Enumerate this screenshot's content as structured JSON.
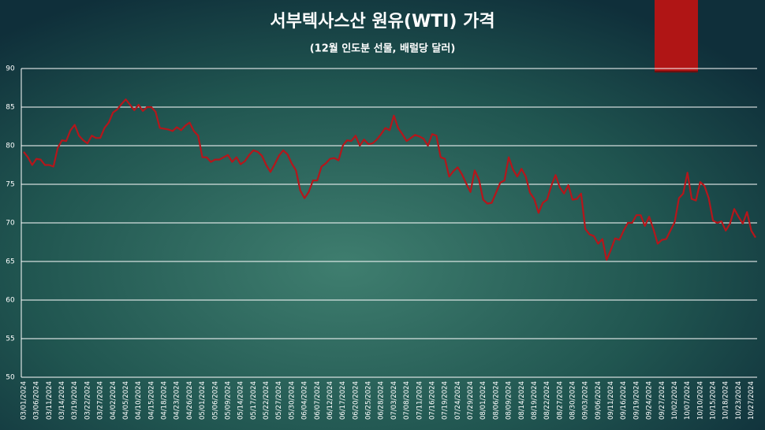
{
  "chart_data": {
    "type": "line",
    "title": "서부텍사스산 원유(WTI) 가격",
    "subtitle": "(12월 인도분 선물, 배럴당 달러)",
    "categories": [
      "03/01/2024",
      null,
      null,
      "03/06/2024",
      null,
      null,
      "03/11/2024",
      null,
      null,
      "03/14/2024",
      null,
      null,
      "03/19/2024",
      null,
      null,
      "03/22/2024",
      null,
      null,
      "03/27/2024",
      null,
      null,
      "04/02/2024",
      null,
      null,
      "04/05/2024",
      null,
      null,
      "04/10/2024",
      null,
      null,
      "04/15/2024",
      null,
      null,
      "04/18/2024",
      null,
      null,
      "04/23/2024",
      null,
      null,
      "04/26/2024",
      null,
      null,
      "05/01/2024",
      null,
      null,
      "05/06/2024",
      null,
      null,
      "05/09/2024",
      null,
      null,
      "05/14/2024",
      null,
      null,
      "05/17/2024",
      null,
      null,
      "05/22/2024",
      null,
      null,
      "05/27/2024",
      null,
      null,
      "05/30/2024",
      null,
      null,
      "06/04/2024",
      null,
      null,
      "06/07/2024",
      null,
      null,
      "06/12/2024",
      null,
      null,
      "06/17/2024",
      null,
      null,
      "06/20/2024",
      null,
      null,
      "06/25/2024",
      null,
      null,
      "06/28/2024",
      null,
      null,
      "07/03/2024",
      null,
      null,
      "07/08/2024",
      null,
      null,
      "07/11/2024",
      null,
      null,
      "07/16/2024",
      null,
      null,
      "07/19/2024",
      null,
      null,
      "07/24/2024",
      null,
      null,
      "07/29/2024",
      null,
      null,
      "08/01/2024",
      null,
      null,
      "08/06/2024",
      null,
      null,
      "08/09/2024",
      null,
      null,
      "08/14/2024",
      null,
      null,
      "08/19/2024",
      null,
      null,
      "08/22/2024",
      null,
      null,
      "08/27/2024",
      null,
      null,
      "08/30/2024",
      null,
      null,
      "09/03/2024",
      null,
      null,
      "09/06/2024",
      null,
      null,
      "09/11/2024",
      null,
      null,
      "09/16/2024",
      null,
      null,
      "09/19/2024",
      null,
      null,
      "09/24/2024",
      null,
      null,
      "09/27/2024",
      null,
      null,
      "10/02/2024",
      null,
      null,
      "10/07/2024",
      null,
      null,
      "10/10/2024",
      null,
      null,
      "10/15/2024",
      null,
      null,
      "10/18/2024",
      null,
      null,
      "10/23/2024",
      null,
      null,
      "10/27/2024",
      null
    ],
    "values": [
      79.2,
      78.5,
      77.5,
      78.3,
      78.2,
      77.5,
      77.5,
      77.3,
      79.7,
      80.7,
      80.6,
      82.0,
      82.7,
      81.3,
      80.7,
      80.3,
      81.3,
      81.0,
      81.0,
      82.3,
      83.0,
      84.3,
      84.7,
      85.4,
      86.0,
      85.3,
      84.6,
      85.3,
      84.5,
      85.0,
      85.0,
      84.4,
      82.3,
      82.2,
      82.1,
      81.9,
      82.4,
      82.0,
      82.6,
      83.0,
      81.9,
      81.3,
      78.5,
      78.5,
      77.9,
      78.2,
      78.2,
      78.5,
      78.8,
      77.9,
      78.5,
      77.6,
      78.0,
      78.8,
      79.4,
      79.2,
      78.7,
      77.5,
      76.6,
      77.6,
      78.7,
      79.4,
      78.9,
      77.7,
      76.8,
      74.2,
      73.2,
      74.0,
      75.5,
      75.5,
      77.3,
      77.7,
      78.3,
      78.4,
      78.1,
      80.0,
      80.7,
      80.6,
      81.3,
      80.0,
      80.8,
      80.2,
      80.3,
      80.8,
      81.5,
      82.3,
      82.0,
      83.9,
      82.3,
      81.5,
      80.6,
      81.0,
      81.4,
      81.2,
      80.9,
      80.0,
      81.5,
      81.3,
      78.5,
      78.3,
      76.0,
      76.7,
      77.2,
      76.3,
      75.1,
      74.0,
      76.8,
      75.6,
      73.0,
      72.5,
      72.6,
      73.9,
      75.2,
      75.5,
      78.5,
      76.9,
      76.0,
      77.0,
      76.0,
      73.9,
      73.1,
      71.3,
      72.6,
      73.0,
      74.8,
      76.2,
      74.6,
      73.8,
      74.9,
      73.0,
      73.1,
      73.8,
      69.2,
      68.5,
      68.3,
      67.3,
      67.9,
      65.2,
      66.5,
      68.0,
      67.8,
      69.0,
      70.0,
      70.0,
      71.0,
      71.0,
      69.6,
      70.8,
      69.2,
      67.3,
      67.8,
      67.9,
      69.0,
      70.1,
      73.2,
      73.8,
      76.5,
      73.1,
      72.9,
      75.3,
      74.8,
      73.2,
      70.3,
      70.0,
      70.2,
      69.0,
      69.9,
      71.8,
      70.8,
      69.9,
      71.4,
      69.0,
      68.1
    ],
    "color": "#b5161b",
    "ylim": [
      50,
      90
    ],
    "yticks": [
      50,
      55,
      60,
      65,
      70,
      75,
      80,
      85,
      90
    ],
    "grid": true
  }
}
